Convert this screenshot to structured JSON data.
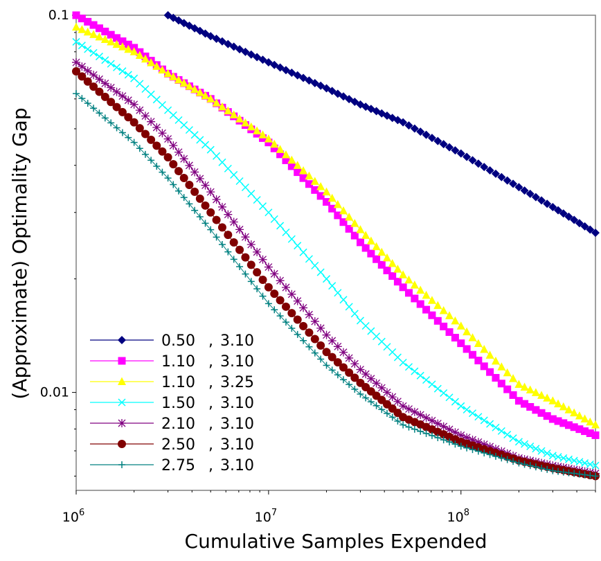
{
  "chart_data": {
    "type": "line",
    "title": "",
    "xlabel": "Cumulative Samples Expended",
    "ylabel": "(Approximate) Optimality Gap",
    "xscale": "log",
    "yscale": "log",
    "xlim": [
      1000000,
      500000000
    ],
    "ylim": [
      0.0055,
      0.1
    ],
    "x_ticks": [
      {
        "value": 1000000,
        "base": "10",
        "exp": "6"
      },
      {
        "value": 10000000,
        "base": "10",
        "exp": "7"
      },
      {
        "value": 100000000,
        "base": "10",
        "exp": "8"
      }
    ],
    "y_ticks": [
      {
        "value": 0.1,
        "label": "0.1"
      },
      {
        "value": 0.01,
        "label": "0.01"
      }
    ],
    "grid": false,
    "legend_position": "bottom-left",
    "x": [
      1000000,
      2000000,
      3000000,
      5000000,
      10000000,
      20000000,
      30000000,
      50000000,
      100000000,
      200000000,
      300000000,
      500000000
    ],
    "series": [
      {
        "name": "0.50 , 3.10",
        "legend_value_1": "0.50",
        "legend_value_2": "3.10",
        "color": "#000080",
        "marker": "diamond",
        "values": [
          null,
          null,
          0.1,
          0.088,
          0.075,
          0.064,
          0.058,
          0.052,
          0.043,
          0.035,
          0.031,
          0.0265
        ]
      },
      {
        "name": "1.10 , 3.10",
        "legend_value_1": "1.10",
        "legend_value_2": "3.10",
        "color": "#ff00ff",
        "marker": "square",
        "values": [
          0.1,
          0.082,
          0.07,
          0.06,
          0.046,
          0.032,
          0.025,
          0.019,
          0.0135,
          0.0095,
          0.0085,
          0.0077
        ]
      },
      {
        "name": "1.10 , 3.25",
        "legend_value_1": "1.10",
        "legend_value_2": "3.25",
        "color": "#ffff00",
        "marker": "triangle",
        "values": [
          0.093,
          0.08,
          0.07,
          0.06,
          0.047,
          0.034,
          0.027,
          0.0205,
          0.015,
          0.0105,
          0.0095,
          0.0082
        ]
      },
      {
        "name": "1.50 , 3.10",
        "legend_value_1": "1.50",
        "legend_value_2": "3.10",
        "color": "#00ffff",
        "marker": "x",
        "values": [
          0.085,
          0.068,
          0.056,
          0.044,
          0.03,
          0.02,
          0.0155,
          0.012,
          0.0092,
          0.0074,
          0.0068,
          0.0064
        ]
      },
      {
        "name": "2.10 , 3.10",
        "legend_value_1": "2.10",
        "legend_value_2": "3.10",
        "color": "#800080",
        "marker": "star",
        "values": [
          0.075,
          0.058,
          0.047,
          0.034,
          0.0215,
          0.0142,
          0.0115,
          0.0092,
          0.0077,
          0.0067,
          0.0064,
          0.0061
        ]
      },
      {
        "name": "2.50 , 3.10",
        "legend_value_1": "2.50",
        "legend_value_2": "3.10",
        "color": "#800000",
        "marker": "circle",
        "values": [
          0.071,
          0.052,
          0.042,
          0.03,
          0.019,
          0.0128,
          0.0106,
          0.0086,
          0.0074,
          0.0066,
          0.0063,
          0.006
        ]
      },
      {
        "name": "2.75 , 3.10",
        "legend_value_1": "2.75",
        "legend_value_2": "3.10",
        "color": "#008080",
        "marker": "plus",
        "values": [
          0.062,
          0.046,
          0.037,
          0.027,
          0.0172,
          0.0118,
          0.0099,
          0.0082,
          0.0072,
          0.0065,
          0.0062,
          0.006
        ]
      }
    ]
  }
}
